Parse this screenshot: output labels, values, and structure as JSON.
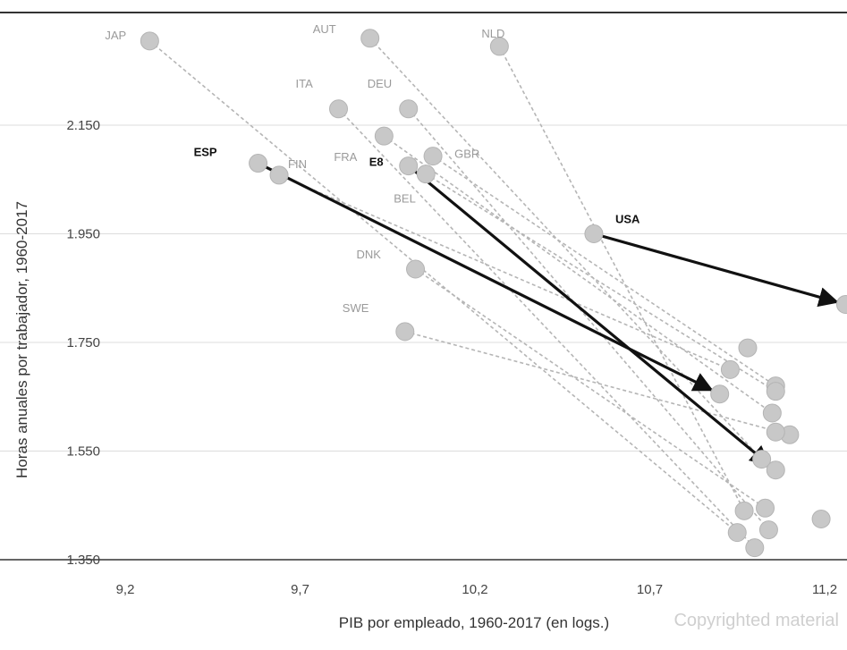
{
  "chart_data": {
    "type": "scatter",
    "title": "",
    "xlabel": "PIB por empleado, 1960-2017 (en logs.)",
    "ylabel": "Horas anuales por trabajador, 1960-2017",
    "xlim": [
      9.2,
      11.25
    ],
    "ylim": [
      1350,
      2350
    ],
    "x_ticks": [
      9.2,
      9.7,
      10.2,
      10.7,
      11.2
    ],
    "x_tick_labels": [
      "9,2",
      "9,7",
      "10,2",
      "10,7",
      "11,2"
    ],
    "y_ticks": [
      1350,
      1550,
      1750,
      1950,
      2150
    ],
    "y_tick_labels": [
      "1.350",
      "1.550",
      "1.750",
      "1.950",
      "2.150"
    ],
    "grid": "horizontal",
    "watermark": "Copyrighted material",
    "series": [
      {
        "label": "JAP",
        "highlight": false,
        "start": {
          "x": 9.27,
          "y": 2305
        },
        "end": {
          "x": 10.95,
          "y": 1400
        }
      },
      {
        "label": "AUT",
        "highlight": false,
        "start": {
          "x": 9.9,
          "y": 2310
        },
        "end": {
          "x": 11.02,
          "y": 1535
        }
      },
      {
        "label": "NLD",
        "highlight": false,
        "start": {
          "x": 10.27,
          "y": 2295
        },
        "end": {
          "x": 10.97,
          "y": 1440
        }
      },
      {
        "label": "ITA",
        "highlight": false,
        "start": {
          "x": 9.81,
          "y": 2180
        },
        "end": {
          "x": 11.0,
          "y": 1372
        }
      },
      {
        "label": "DEU",
        "highlight": false,
        "start": {
          "x": 10.01,
          "y": 2180
        },
        "end": {
          "x": 11.04,
          "y": 1405
        }
      },
      {
        "label": "FRA",
        "highlight": false,
        "start": {
          "x": 9.94,
          "y": 2130
        },
        "end": {
          "x": 11.05,
          "y": 1620
        }
      },
      {
        "label": "GBR",
        "highlight": false,
        "start": {
          "x": 10.08,
          "y": 2093
        },
        "end": {
          "x": 11.06,
          "y": 1670
        }
      },
      {
        "label": "FIN",
        "highlight": false,
        "start": {
          "x": 9.64,
          "y": 2058
        },
        "end": {
          "x": 10.93,
          "y": 1700
        }
      },
      {
        "label": "BEL",
        "highlight": false,
        "start": {
          "x": 10.06,
          "y": 2060
        },
        "end": {
          "x": 11.06,
          "y": 1660
        }
      },
      {
        "label": "DNK",
        "highlight": false,
        "start": {
          "x": 10.03,
          "y": 1885
        },
        "end": {
          "x": 11.03,
          "y": 1445
        }
      },
      {
        "label": "SWE",
        "highlight": false,
        "start": {
          "x": 10.0,
          "y": 1770
        },
        "end": {
          "x": 11.1,
          "y": 1580
        }
      },
      {
        "label": "ESP",
        "highlight": true,
        "start": {
          "x": 9.58,
          "y": 2080
        },
        "end": {
          "x": 10.9,
          "y": 1655
        }
      },
      {
        "label": "E8",
        "highlight": true,
        "start": {
          "x": 10.01,
          "y": 2075
        },
        "end": {
          "x": 11.06,
          "y": 1515
        }
      },
      {
        "label": "USA",
        "highlight": true,
        "start": {
          "x": 10.54,
          "y": 1950
        },
        "end": {
          "x": 11.26,
          "y": 1820
        }
      }
    ],
    "extra_end_points": [
      {
        "x": 10.98,
        "y": 1740
      },
      {
        "x": 11.06,
        "y": 1585
      },
      {
        "x": 11.19,
        "y": 1425
      }
    ]
  }
}
